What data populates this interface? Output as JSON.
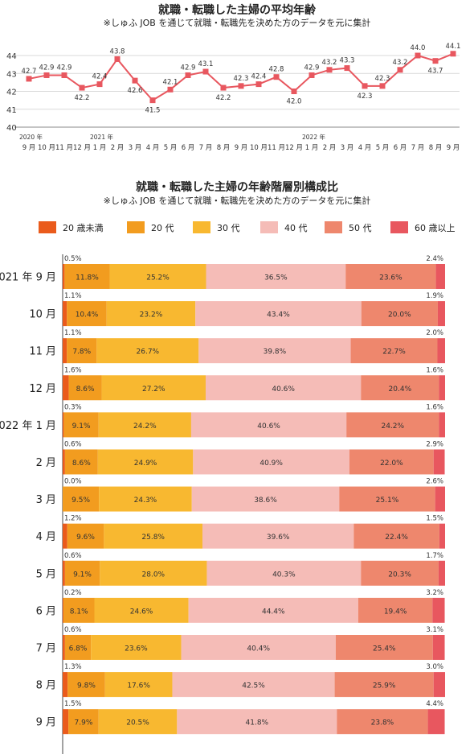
{
  "chart_data": [
    {
      "type": "line",
      "title": "就職・転職した主婦の平均年齢",
      "subtitle": "※しゅふ JOB を通じて就職・転職先を決めた方のデータを元に集計",
      "x": [
        "9 月",
        "10 月",
        "11 月",
        "12 月",
        "1 月",
        "2 月",
        "3 月",
        "4 月",
        "5 月",
        "6 月",
        "7 月",
        "8 月",
        "9 月",
        "10 月",
        "11 月",
        "12 月",
        "1 月",
        "2 月",
        "3 月",
        "4 月",
        "5 月",
        "6 月",
        "7 月",
        "8 月",
        "9 月"
      ],
      "year_markers": [
        {
          "index": 0,
          "label": "2020 年"
        },
        {
          "index": 4,
          "label": "2021 年"
        },
        {
          "index": 16,
          "label": "2022 年"
        }
      ],
      "series": [
        {
          "values": [
            42.7,
            42.9,
            42.9,
            42.2,
            42.4,
            43.8,
            42.6,
            41.5,
            42.1,
            42.9,
            43.1,
            42.2,
            42.3,
            42.4,
            42.8,
            42.0,
            42.9,
            43.2,
            43.3,
            42.3,
            42.3,
            43.2,
            44.0,
            43.7,
            44.1
          ]
        }
      ],
      "ylim": [
        40,
        44
      ],
      "yticks": [
        40,
        41,
        42,
        43,
        44
      ],
      "grid": true,
      "color": "#e8575f"
    },
    {
      "type": "bar",
      "orientation": "horizontal",
      "stacked": true,
      "title": "就職・転職した主婦の年齢階層別構成比",
      "subtitle": "※しゅふ JOB を通じて就職・転職先を決めた方のデータを元に集計",
      "legend_position": "top",
      "categories": [
        "2021 年 9 月",
        "10 月",
        "11 月",
        "12 月",
        "2022 年 1 月",
        "2 月",
        "3 月",
        "4 月",
        "5 月",
        "6 月",
        "7 月",
        "8 月",
        "9 月"
      ],
      "series": [
        {
          "name": "20 歳未満",
          "color": "#ea5b1c",
          "values": [
            0.5,
            1.1,
            1.1,
            1.6,
            0.3,
            0.6,
            0.0,
            1.2,
            0.6,
            0.2,
            0.6,
            1.3,
            1.5
          ]
        },
        {
          "name": "20 代",
          "color": "#f29c1f",
          "values": [
            11.8,
            10.4,
            7.8,
            8.6,
            9.1,
            8.6,
            9.5,
            9.6,
            9.1,
            8.1,
            6.8,
            9.8,
            7.9
          ]
        },
        {
          "name": "30 代",
          "color": "#f8b830",
          "values": [
            25.2,
            23.2,
            26.7,
            27.2,
            24.2,
            24.9,
            24.3,
            25.8,
            28.0,
            24.6,
            23.6,
            17.6,
            20.5
          ]
        },
        {
          "name": "40 代",
          "color": "#f5bcb7",
          "values": [
            36.5,
            43.4,
            39.8,
            40.6,
            40.6,
            40.9,
            38.6,
            39.6,
            40.3,
            44.4,
            40.4,
            42.5,
            41.8
          ]
        },
        {
          "name": "50 代",
          "color": "#ee876d",
          "values": [
            23.6,
            20.0,
            22.7,
            20.4,
            24.2,
            22.0,
            25.1,
            22.4,
            20.3,
            19.4,
            25.4,
            25.9,
            23.8
          ]
        },
        {
          "name": "60 歳以上",
          "color": "#e8575f",
          "values": [
            2.4,
            1.9,
            2.0,
            1.6,
            1.6,
            2.9,
            2.6,
            1.5,
            1.7,
            3.2,
            3.1,
            3.0,
            4.4
          ]
        }
      ],
      "xlim": [
        0,
        100
      ]
    }
  ]
}
